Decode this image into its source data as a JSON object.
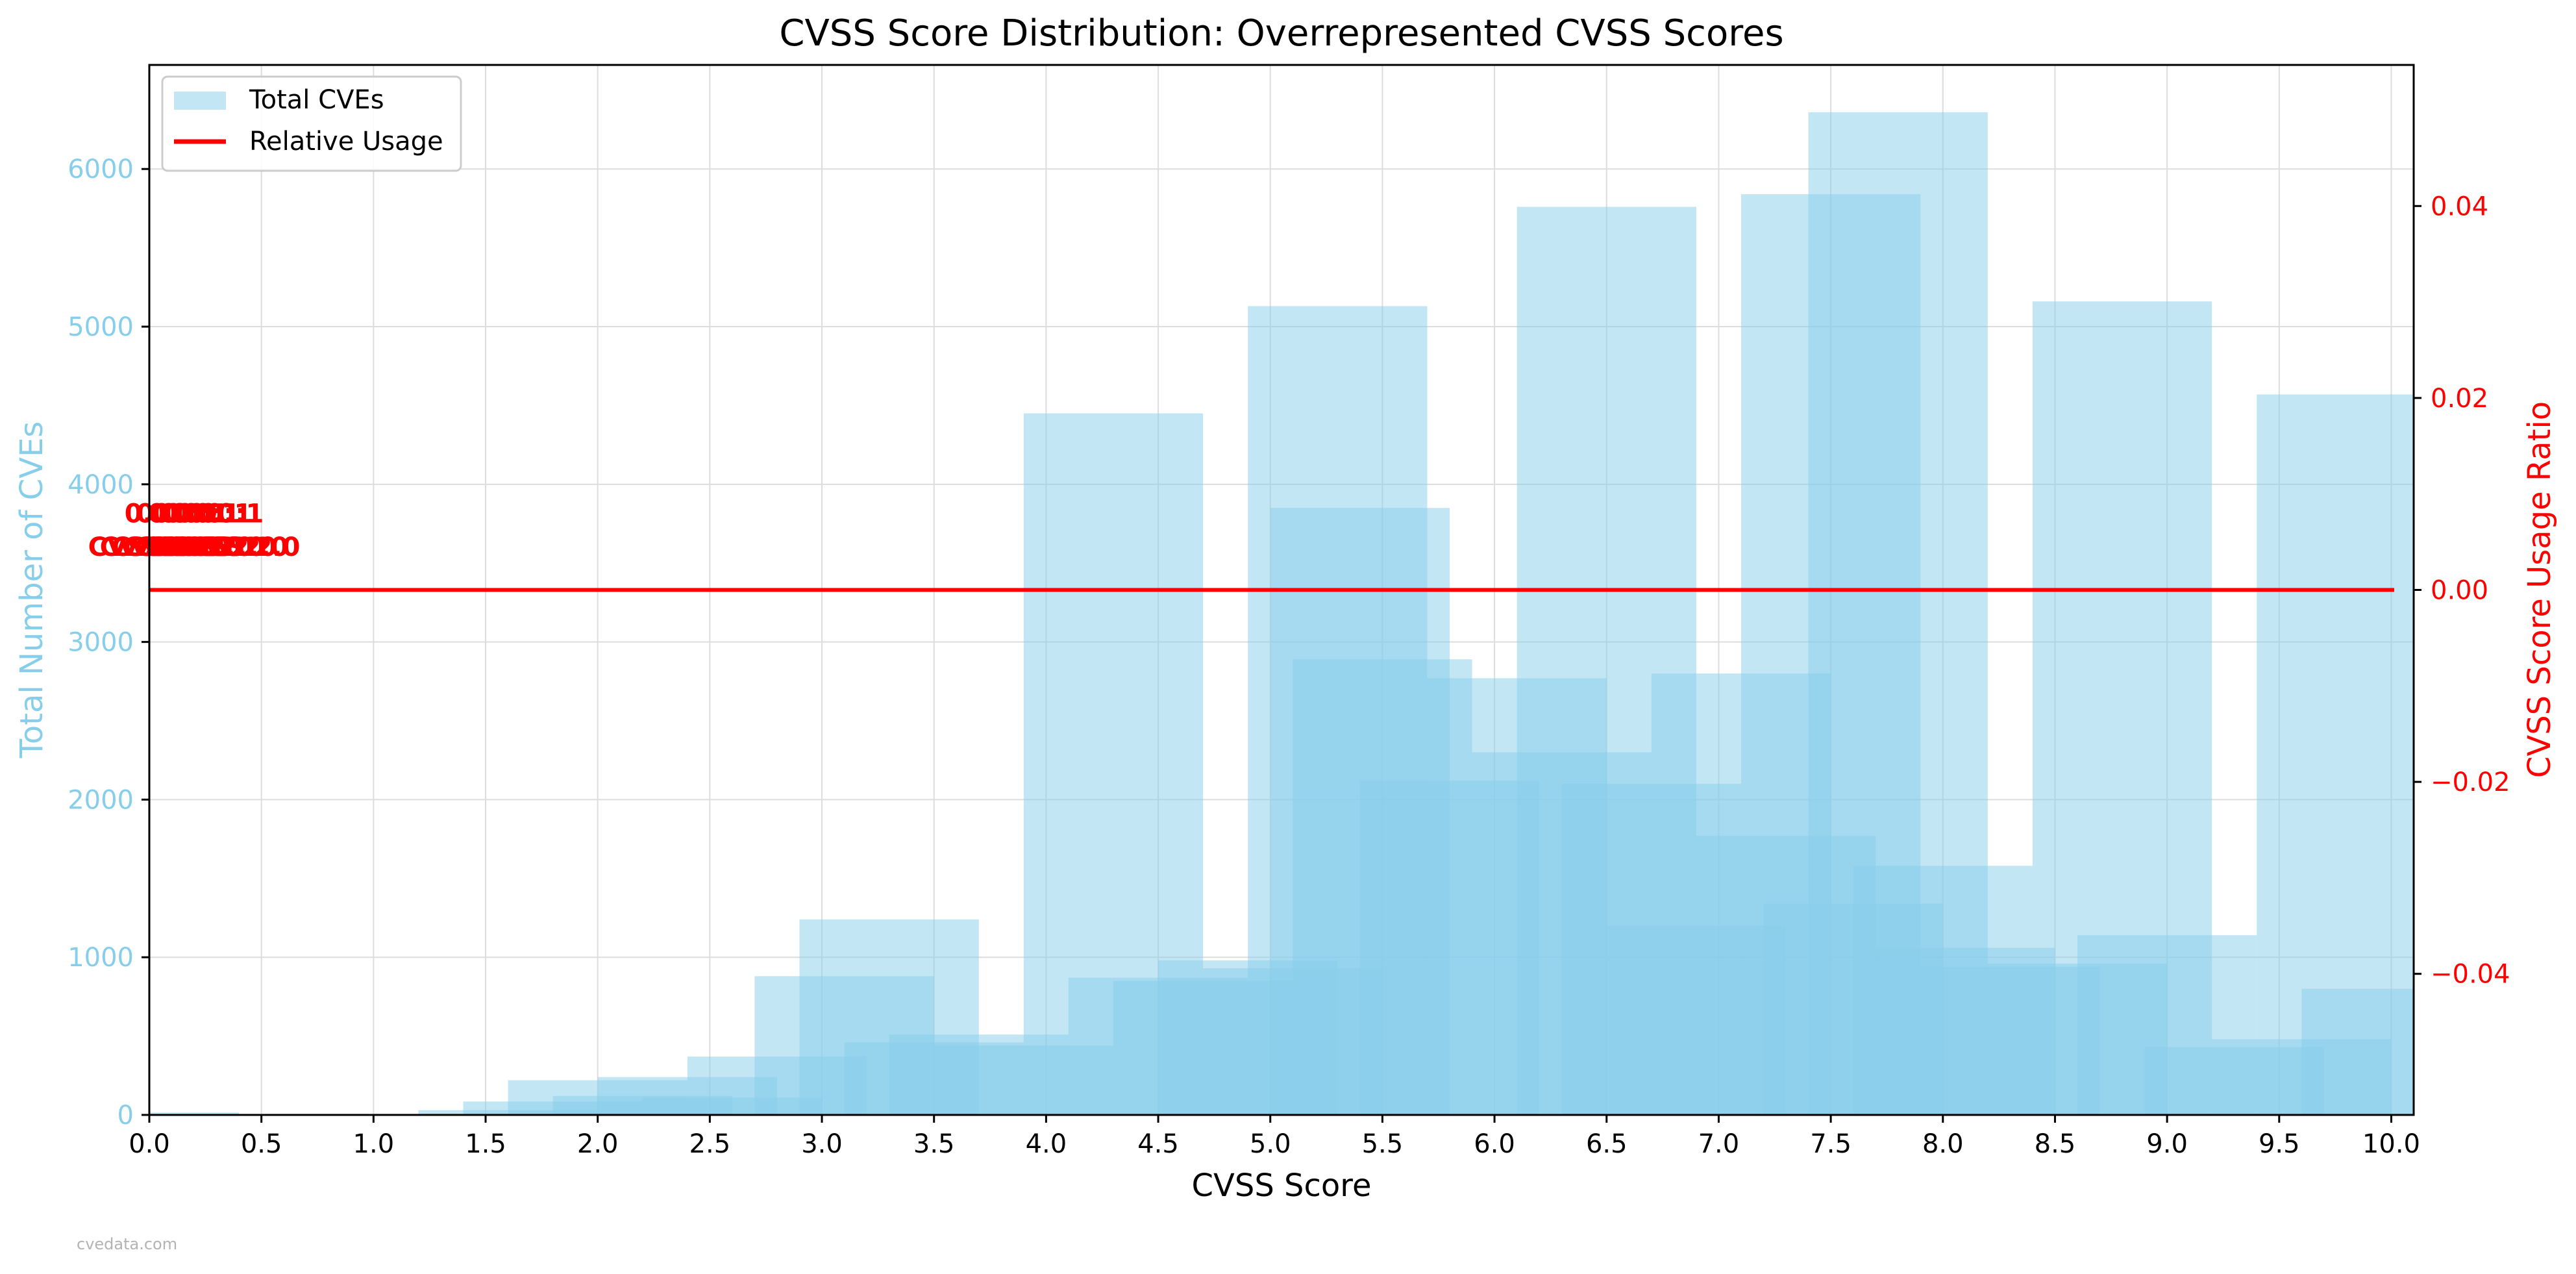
{
  "chart_data": {
    "type": "bar",
    "title": "CVSS Score Distribution: Overrepresented CVSS Scores",
    "xlabel": "CVSS Score",
    "ylabel": "Total Number of CVEs",
    "y2label": "CVSS Score Usage Ratio",
    "xlim": [
      0.0,
      10.1
    ],
    "ylim": [
      0,
      6660
    ],
    "y2lim": [
      -0.0547,
      0.0547
    ],
    "xticks": [
      "0.0",
      "0.5",
      "1.0",
      "1.5",
      "2.0",
      "2.5",
      "3.0",
      "3.5",
      "4.0",
      "4.5",
      "5.0",
      "5.5",
      "6.0",
      "6.5",
      "7.0",
      "7.5",
      "8.0",
      "8.5",
      "9.0",
      "9.5",
      "10.0"
    ],
    "yticks": [
      "0",
      "1000",
      "2000",
      "3000",
      "4000",
      "5000",
      "6000"
    ],
    "y2ticks": [
      "−0.04",
      "−0.02",
      "0.00",
      "0.02",
      "0.04"
    ],
    "grid": true,
    "legend_position": "top-left",
    "colors": {
      "bars": "#87ceeb",
      "line": "#ff0000",
      "left_axis": "#87ceeb",
      "right_axis": "#ff0000"
    },
    "series": [
      {
        "name": "Total CVEs",
        "type": "bar"
      },
      {
        "name": "Relative Usage",
        "type": "line",
        "y2": 0.0
      }
    ],
    "bars": [
      {
        "x": 0.0,
        "width": 0.8,
        "value": 15
      },
      {
        "x": 1.6,
        "width": 0.8,
        "value": 30
      },
      {
        "x": 1.8,
        "width": 0.8,
        "value": 85
      },
      {
        "x": 2.0,
        "width": 0.8,
        "value": 220
      },
      {
        "x": 2.2,
        "width": 0.8,
        "value": 120
      },
      {
        "x": 2.4,
        "width": 0.8,
        "value": 240
      },
      {
        "x": 2.6,
        "width": 0.8,
        "value": 110
      },
      {
        "x": 2.8,
        "width": 0.8,
        "value": 370
      },
      {
        "x": 3.1,
        "width": 0.8,
        "value": 880
      },
      {
        "x": 3.3,
        "width": 0.8,
        "value": 1240
      },
      {
        "x": 3.5,
        "width": 0.8,
        "value": 460
      },
      {
        "x": 3.7,
        "width": 0.8,
        "value": 510
      },
      {
        "x": 3.9,
        "width": 0.8,
        "value": 440
      },
      {
        "x": 4.3,
        "width": 0.8,
        "value": 4450
      },
      {
        "x": 4.5,
        "width": 0.8,
        "value": 870
      },
      {
        "x": 4.7,
        "width": 0.8,
        "value": 850
      },
      {
        "x": 4.9,
        "width": 0.8,
        "value": 980
      },
      {
        "x": 5.1,
        "width": 0.8,
        "value": 930
      },
      {
        "x": 5.3,
        "width": 0.8,
        "value": 5130
      },
      {
        "x": 5.4,
        "width": 0.8,
        "value": 3850
      },
      {
        "x": 5.5,
        "width": 0.8,
        "value": 2890
      },
      {
        "x": 5.8,
        "width": 0.8,
        "value": 2120
      },
      {
        "x": 6.1,
        "width": 0.8,
        "value": 2770
      },
      {
        "x": 6.3,
        "width": 0.8,
        "value": 2300
      },
      {
        "x": 6.5,
        "width": 0.8,
        "value": 5760
      },
      {
        "x": 6.7,
        "width": 0.8,
        "value": 2100
      },
      {
        "x": 6.9,
        "width": 0.8,
        "value": 1200
      },
      {
        "x": 7.1,
        "width": 0.8,
        "value": 2800
      },
      {
        "x": 7.3,
        "width": 0.8,
        "value": 1770
      },
      {
        "x": 7.5,
        "width": 0.8,
        "value": 5840
      },
      {
        "x": 7.6,
        "width": 0.8,
        "value": 1340
      },
      {
        "x": 7.8,
        "width": 0.8,
        "value": 6360
      },
      {
        "x": 8.0,
        "width": 0.8,
        "value": 1580
      },
      {
        "x": 8.1,
        "width": 0.8,
        "value": 1060
      },
      {
        "x": 8.3,
        "width": 0.8,
        "value": 940
      },
      {
        "x": 8.6,
        "width": 0.8,
        "value": 960
      },
      {
        "x": 8.8,
        "width": 0.8,
        "value": 5160
      },
      {
        "x": 9.0,
        "width": 0.8,
        "value": 1140
      },
      {
        "x": 9.3,
        "width": 0.8,
        "value": 430
      },
      {
        "x": 9.6,
        "width": 0.8,
        "value": 480
      },
      {
        "x": 9.8,
        "width": 0.8,
        "value": 4570
      },
      {
        "x": 10.0,
        "width": 0.8,
        "value": 800
      }
    ],
    "annotations": [
      {
        "text": "0.00:1",
        "x": 0.2,
        "y2": 0.008,
        "overlap": 5
      },
      {
        "text": "CVSS 2.0",
        "x": 0.2,
        "y2": 0.0045,
        "overlap": 8
      }
    ]
  },
  "watermark": "cvedata.com"
}
